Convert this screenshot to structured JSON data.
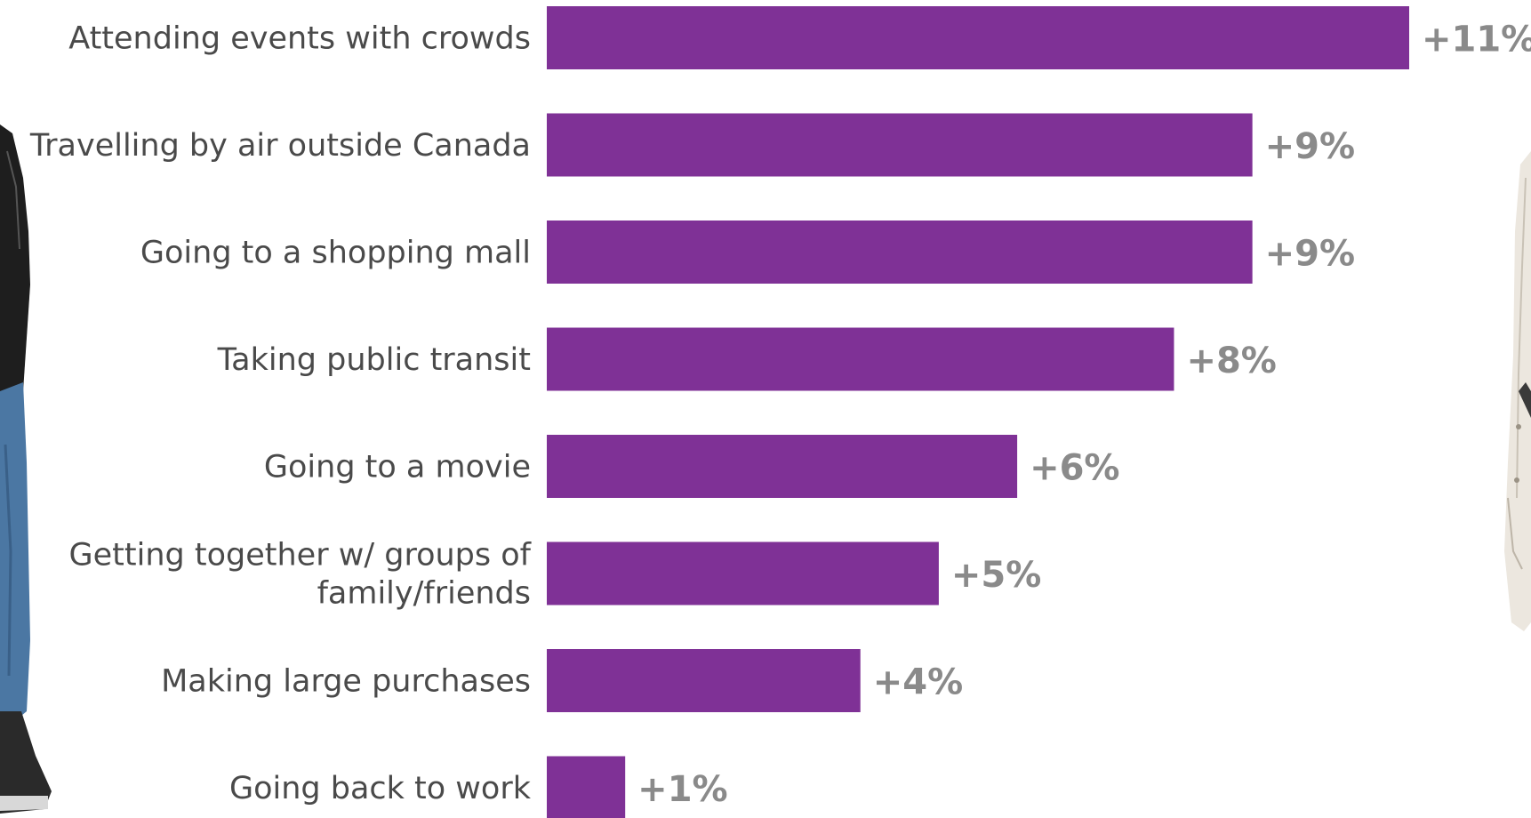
{
  "chart_data": {
    "type": "bar",
    "orientation": "horizontal",
    "categories": [
      "Attending events with crowds",
      "Travelling by air outside Canada",
      "Going to a shopping mall",
      "Taking public transit",
      "Going to a movie",
      "Getting together w/ groups of family/friends",
      "Making large purchases",
      "Going back to work"
    ],
    "category_lines": [
      [
        "Attending events with crowds"
      ],
      [
        "Travelling by air outside Canada"
      ],
      [
        "Going to a shopping mall"
      ],
      [
        "Taking public transit"
      ],
      [
        "Going to a movie"
      ],
      [
        "Getting together w/ groups of",
        "family/friends"
      ],
      [
        "Making large purchases"
      ],
      [
        "Going back to work"
      ]
    ],
    "values": [
      11,
      9,
      9,
      8,
      6,
      5,
      4,
      1
    ],
    "value_labels": [
      "+11%",
      "+9%",
      "+9%",
      "+8%",
      "+6%",
      "+5%",
      "+4%",
      "+1%"
    ],
    "xlim": [
      0,
      11
    ],
    "grid": false,
    "legend": "none",
    "bar_color": "#7f3196",
    "label_color": "#4a4a4a",
    "value_label_color": "#8a8a8a"
  },
  "decor": {
    "left_figure_icon": "person-in-leather-jacket-and-jeans-illustration",
    "right_figure_icon": "person-in-white-coat-illustration",
    "jacket_color": "#1e1e1e",
    "jeans_color": "#4b77a3",
    "coat_color": "#ece7df"
  }
}
